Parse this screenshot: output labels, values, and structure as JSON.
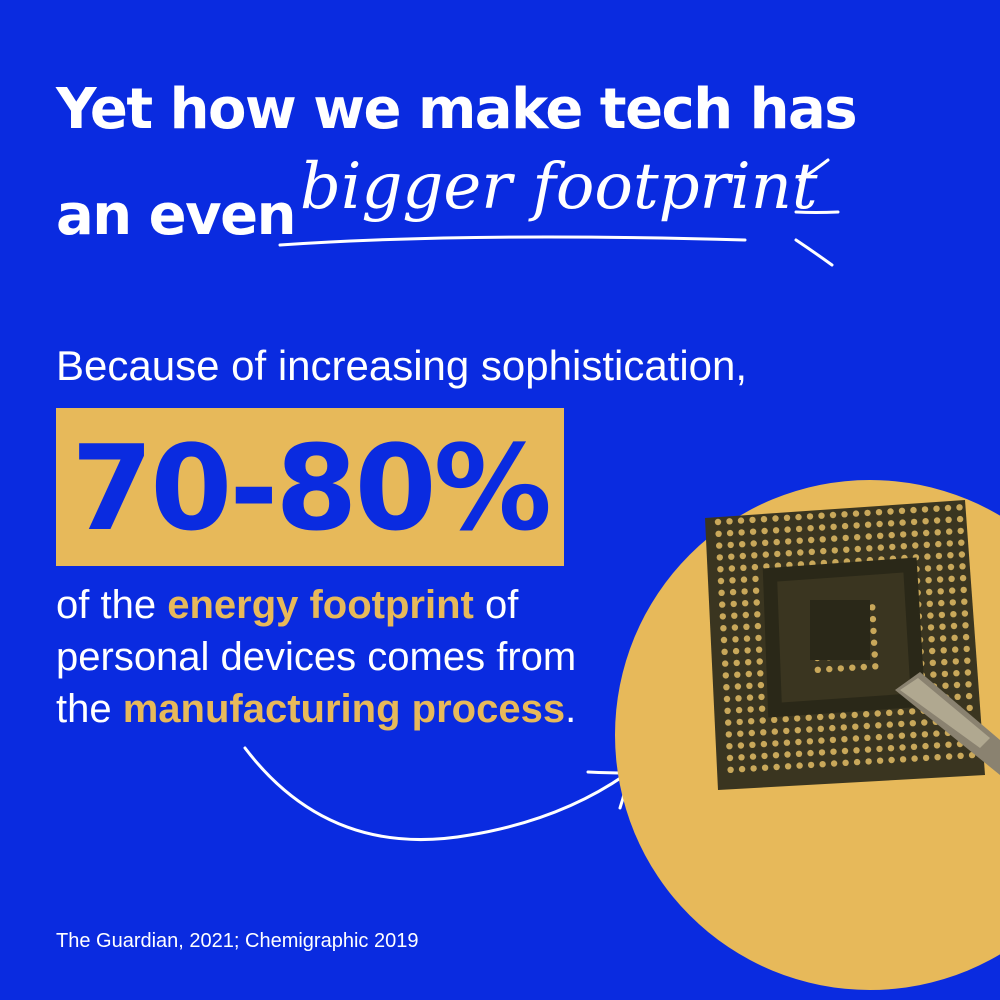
{
  "headline": {
    "line1": "Yet how we make tech has",
    "line2_prefix": "an even",
    "emphasis": "bigger footprint"
  },
  "intro": "Because of increasing sophistication,",
  "stat": {
    "value": "70-80%"
  },
  "body": {
    "line1_prefix": "of the",
    "highlight1": "energy footprint",
    "line1_suffix": "of",
    "line2": "personal devices comes from",
    "line3_prefix": "the",
    "highlight2": "manufacturing process",
    "line3_suffix": "."
  },
  "citation": "The Guardian, 2021; Chemigraphic 2019",
  "colors": {
    "background": "#0a2be0",
    "accent": "#e7b95a",
    "text": "#ffffff",
    "chip": "#3a3520"
  },
  "illustration": {
    "icon": "microchip-icon"
  }
}
